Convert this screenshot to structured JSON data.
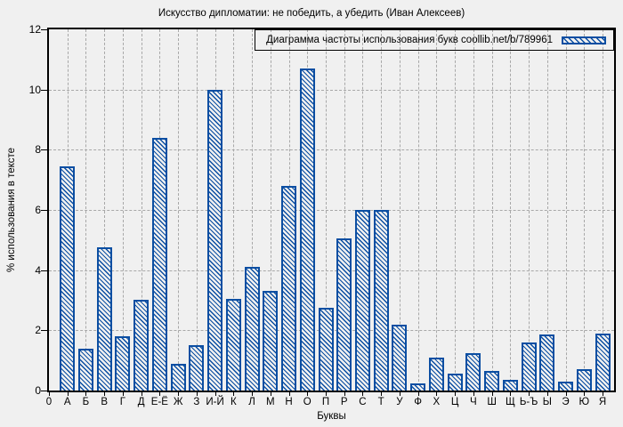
{
  "page": {
    "background": "#f0f0f0"
  },
  "chart_data": {
    "type": "bar",
    "title": "Искусство дипломатии: не победить, а убедить (Иван Алексеев)",
    "legend_label": "Диаграмма частоты использования букв coollib.net/b/789961",
    "legend_position": "top-right",
    "xlabel": "Буквы",
    "ylabel": "% использования в тексте",
    "ylim": [
      0,
      12
    ],
    "yticks": [
      0,
      2,
      4,
      6,
      8,
      10,
      12
    ],
    "grid": true,
    "bar_style": "hatched-diagonal",
    "bar_color": "#0b4ea2",
    "grid_color": "#a8a8a8",
    "background_color": "#f0f0f0",
    "categories": [
      "0",
      "А",
      "Б",
      "В",
      "Г",
      "Д",
      "Е-Ё",
      "Ж",
      "З",
      "И-Й",
      "К",
      "Л",
      "М",
      "Н",
      "О",
      "П",
      "Р",
      "С",
      "Т",
      "У",
      "Ф",
      "Х",
      "Ц",
      "Ч",
      "Ш",
      "Щ",
      "Ь-Ъ",
      "Ы",
      "Э",
      "Ю",
      "Я"
    ],
    "values": [
      null,
      7.45,
      1.4,
      4.75,
      1.8,
      3.0,
      8.4,
      0.9,
      1.5,
      10.0,
      3.05,
      4.1,
      3.3,
      6.8,
      10.7,
      2.75,
      5.05,
      6.0,
      6.0,
      2.2,
      0.25,
      1.1,
      0.55,
      1.25,
      0.65,
      0.35,
      1.6,
      1.85,
      0.3,
      0.7,
      1.9
    ]
  }
}
